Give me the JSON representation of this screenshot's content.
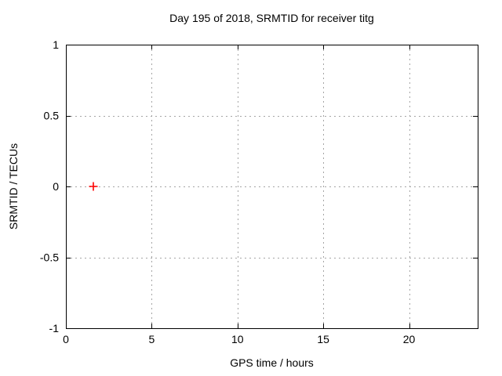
{
  "chart_data": {
    "type": "scatter",
    "title": "Day 195 of 2018, SRMTID for receiver titg",
    "xlabel": "GPS time / hours",
    "ylabel": "SRMTID / TECUs",
    "xlim": [
      0,
      24
    ],
    "ylim": [
      -1,
      1
    ],
    "xticks": [
      0,
      5,
      10,
      15,
      20
    ],
    "xtick_labels": [
      "0",
      "5",
      "10",
      "15",
      "20"
    ],
    "yticks": [
      -1,
      -0.5,
      0,
      0.5,
      1
    ],
    "ytick_labels": [
      "-1",
      "-0.5",
      "0",
      "0.5",
      "1"
    ],
    "grid": "dashed",
    "legend": "none",
    "series": [
      {
        "marker": "plus",
        "color": "#ff0000",
        "points": [
          {
            "x": 1.6,
            "y": 0
          }
        ]
      }
    ],
    "colors": {
      "axis": "#000000",
      "grid": "#a5a5a5",
      "background": "#ffffff",
      "text": "#000000"
    }
  }
}
